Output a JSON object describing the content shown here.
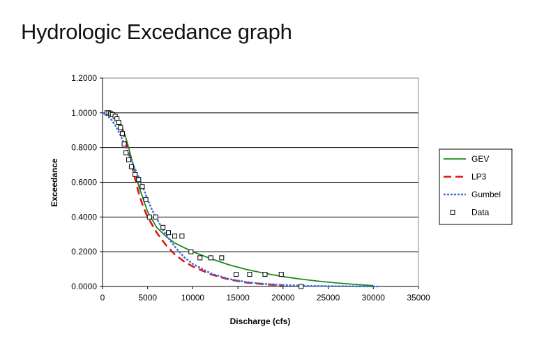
{
  "title": "Hydrologic Excedance graph",
  "chart_data": {
    "type": "line",
    "xlabel": "Discharge (cfs)",
    "ylabel": "Exceedance",
    "xlim": [
      0,
      35000
    ],
    "ylim": [
      0,
      1.2
    ],
    "x_ticks": [
      0,
      5000,
      10000,
      15000,
      20000,
      25000,
      30000,
      35000
    ],
    "x_tick_labels": [
      "0",
      "5000",
      "10000",
      "15000",
      "20000",
      "25000",
      "30000",
      "35000"
    ],
    "y_ticks": [
      0,
      0.2,
      0.4,
      0.6,
      0.8,
      1.0,
      1.2
    ],
    "y_tick_labels": [
      "0.0000",
      "0.2000",
      "0.4000",
      "0.6000",
      "0.8000",
      "1.0000",
      "1.2000"
    ],
    "grid": "horizontal",
    "legend_position": "right",
    "series": [
      {
        "name": "GEV",
        "style": "solid",
        "color": "#1a8a1a",
        "x": [
          500,
          1000,
          1500,
          2000,
          2500,
          3000,
          3500,
          4000,
          5000,
          6000,
          7000,
          8000,
          10000,
          12000,
          14000,
          16000,
          18000,
          20000,
          22000,
          24000,
          26000,
          28000,
          30000
        ],
        "y": [
          1.0,
          0.995,
          0.975,
          0.94,
          0.87,
          0.78,
          0.68,
          0.58,
          0.43,
          0.34,
          0.29,
          0.25,
          0.2,
          0.16,
          0.125,
          0.097,
          0.075,
          0.057,
          0.042,
          0.03,
          0.02,
          0.012,
          0.005
        ]
      },
      {
        "name": "LP3",
        "style": "dashed",
        "color": "#e01010",
        "x": [
          500,
          1000,
          1500,
          2000,
          2500,
          3000,
          3500,
          4000,
          4500,
          5000,
          6000,
          7000,
          8000,
          9000,
          10000,
          12000,
          14000,
          16000,
          18000,
          20000
        ],
        "y": [
          1.0,
          0.99,
          0.97,
          0.93,
          0.85,
          0.75,
          0.64,
          0.54,
          0.46,
          0.4,
          0.31,
          0.24,
          0.185,
          0.145,
          0.115,
          0.07,
          0.04,
          0.022,
          0.012,
          0.006
        ]
      },
      {
        "name": "Gumbel",
        "style": "dotted",
        "color": "#3b6fe0",
        "x": [
          0,
          500,
          1000,
          1500,
          2000,
          2500,
          3000,
          3500,
          4000,
          4500,
          5000,
          5500,
          6000,
          7000,
          8000,
          9000,
          10000,
          12000,
          14000,
          16000,
          18000,
          20000,
          22000,
          25000,
          28000,
          30500
        ],
        "y": [
          1.0,
          0.985,
          0.96,
          0.92,
          0.87,
          0.81,
          0.75,
          0.69,
          0.63,
          0.57,
          0.5,
          0.44,
          0.39,
          0.3,
          0.23,
          0.17,
          0.13,
          0.075,
          0.043,
          0.025,
          0.015,
          0.009,
          0.005,
          0.002,
          0.001,
          0.0
        ]
      },
      {
        "name": "Data",
        "style": "marker",
        "color": "#000000",
        "x": [
          500,
          700,
          900,
          1100,
          1400,
          1600,
          1800,
          2000,
          2200,
          2400,
          2600,
          2900,
          3200,
          3600,
          4000,
          4400,
          4800,
          5200,
          5900,
          6700,
          7300,
          8000,
          8800,
          9800,
          10800,
          12000,
          13200,
          14800,
          16300,
          18000,
          19800,
          22000
        ],
        "y": [
          1.0,
          1.0,
          0.995,
          0.99,
          0.98,
          0.965,
          0.945,
          0.915,
          0.88,
          0.82,
          0.77,
          0.73,
          0.69,
          0.645,
          0.615,
          0.575,
          0.5,
          0.4,
          0.4,
          0.34,
          0.31,
          0.29,
          0.29,
          0.2,
          0.165,
          0.165,
          0.165,
          0.07,
          0.07,
          0.07,
          0.07,
          0.0
        ]
      }
    ]
  }
}
